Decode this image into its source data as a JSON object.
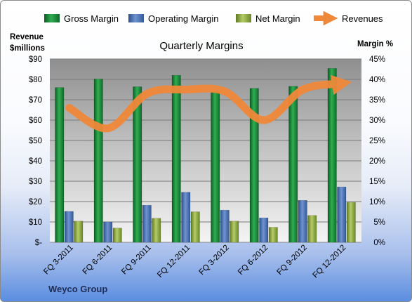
{
  "chart_data": {
    "type": "bar",
    "title": "Quarterly Margins",
    "source": "Weyco Group",
    "categories": [
      "FQ 3-2011",
      "FQ 6-2011",
      "FQ 9-2011",
      "FQ 12-2011",
      "FQ 3-2012",
      "FQ 6-2012",
      "FQ 9-2012",
      "FQ 12-2012"
    ],
    "left_axis": {
      "label_line1": "Revenue",
      "label_line2": "$millions",
      "range": [
        0,
        90
      ],
      "ticks": [
        "$-",
        "$10",
        "$20",
        "$30",
        "$40",
        "$50",
        "$60",
        "$70",
        "$80",
        "$90"
      ]
    },
    "right_axis": {
      "label": "Margin %",
      "range": [
        0,
        45
      ],
      "ticks": [
        "0%",
        "5%",
        "10%",
        "15%",
        "20%",
        "25%",
        "30%",
        "35%",
        "40%",
        "45%"
      ]
    },
    "series": [
      {
        "name": "Gross Margin",
        "type": "bar",
        "axis": "right",
        "color": "#1e8a3c",
        "values": [
          38.0,
          40.1,
          38.2,
          41.0,
          37.0,
          37.8,
          38.3,
          42.7
        ]
      },
      {
        "name": "Operating Margin",
        "type": "bar",
        "axis": "right",
        "color": "#4a73b5",
        "values": [
          7.6,
          5.0,
          9.1,
          12.3,
          7.9,
          6.0,
          10.3,
          13.6
        ]
      },
      {
        "name": "Net Margin",
        "type": "bar",
        "axis": "right",
        "color": "#8fad3f",
        "values": [
          5.2,
          3.5,
          5.9,
          7.5,
          5.2,
          3.7,
          6.6,
          9.8
        ]
      },
      {
        "name": "Revenues",
        "type": "line",
        "axis": "left",
        "color": "#f0883a",
        "values": [
          66,
          56,
          73,
          75,
          74,
          60,
          75,
          78
        ]
      }
    ],
    "grid": true,
    "legend": "top"
  }
}
